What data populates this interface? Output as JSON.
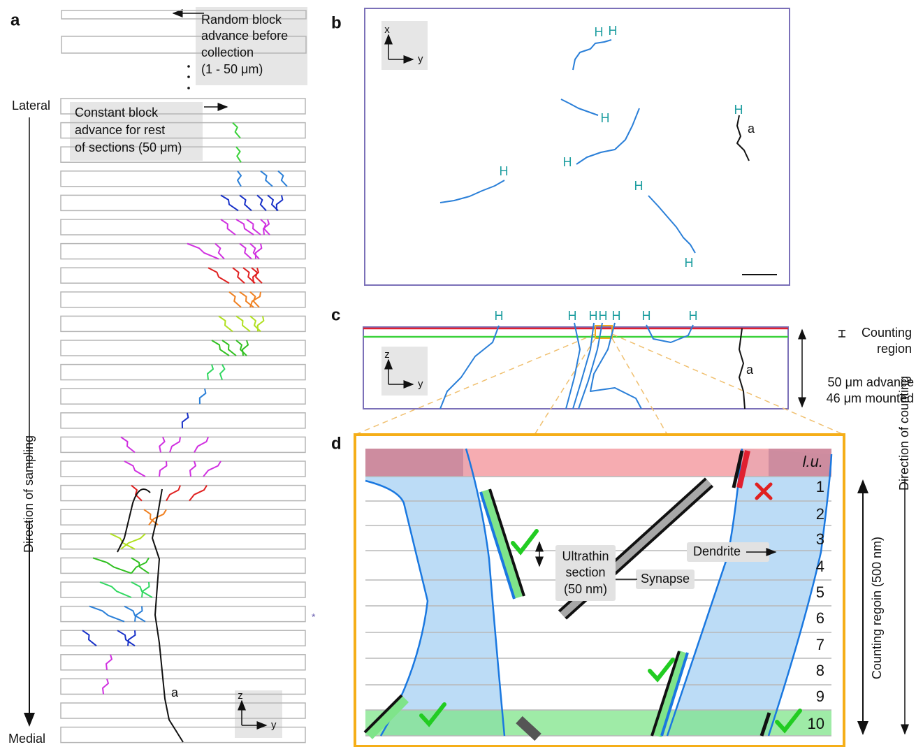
{
  "panel_labels": [
    "a",
    "b",
    "c",
    "d"
  ],
  "panel_a": {
    "random_advance": [
      "Random block",
      "advance before",
      "collection",
      "(1 - 50 μm)"
    ],
    "lateral": "Lateral",
    "constant_advance": [
      "Constant block",
      "advance for rest",
      "of sections (50 μm)"
    ],
    "direction": "Direction of sampling",
    "medial": "Medial",
    "axon_label": "a",
    "marker": "*",
    "axes": [
      "z",
      "y"
    ]
  },
  "panel_b": {
    "axes": [
      "x",
      "y"
    ],
    "h_labels": [
      "H",
      "H",
      "H",
      "H",
      "H",
      "H",
      "H",
      "H"
    ],
    "axon_label": "a"
  },
  "panel_c": {
    "axes": [
      "z",
      "y"
    ],
    "h_labels": [
      "H",
      "H",
      "H",
      "H",
      "H",
      "H",
      "H"
    ],
    "axon_label": "a",
    "counting_region": [
      "Counting",
      "region"
    ],
    "advance": [
      "50 μm advance",
      "46 μm mounted"
    ]
  },
  "panel_d": {
    "lu": "l.u.",
    "sections": [
      "1",
      "2",
      "3",
      "4",
      "5",
      "6",
      "7",
      "8",
      "9",
      "10"
    ],
    "dendrite": "Dendrite",
    "synapse": "Synapse",
    "ultrathin": [
      "Ultrathin",
      "section",
      "(50 nm)"
    ],
    "counting_region": "Counting regoin (500 nm)",
    "direction": "Direction of counting"
  }
}
